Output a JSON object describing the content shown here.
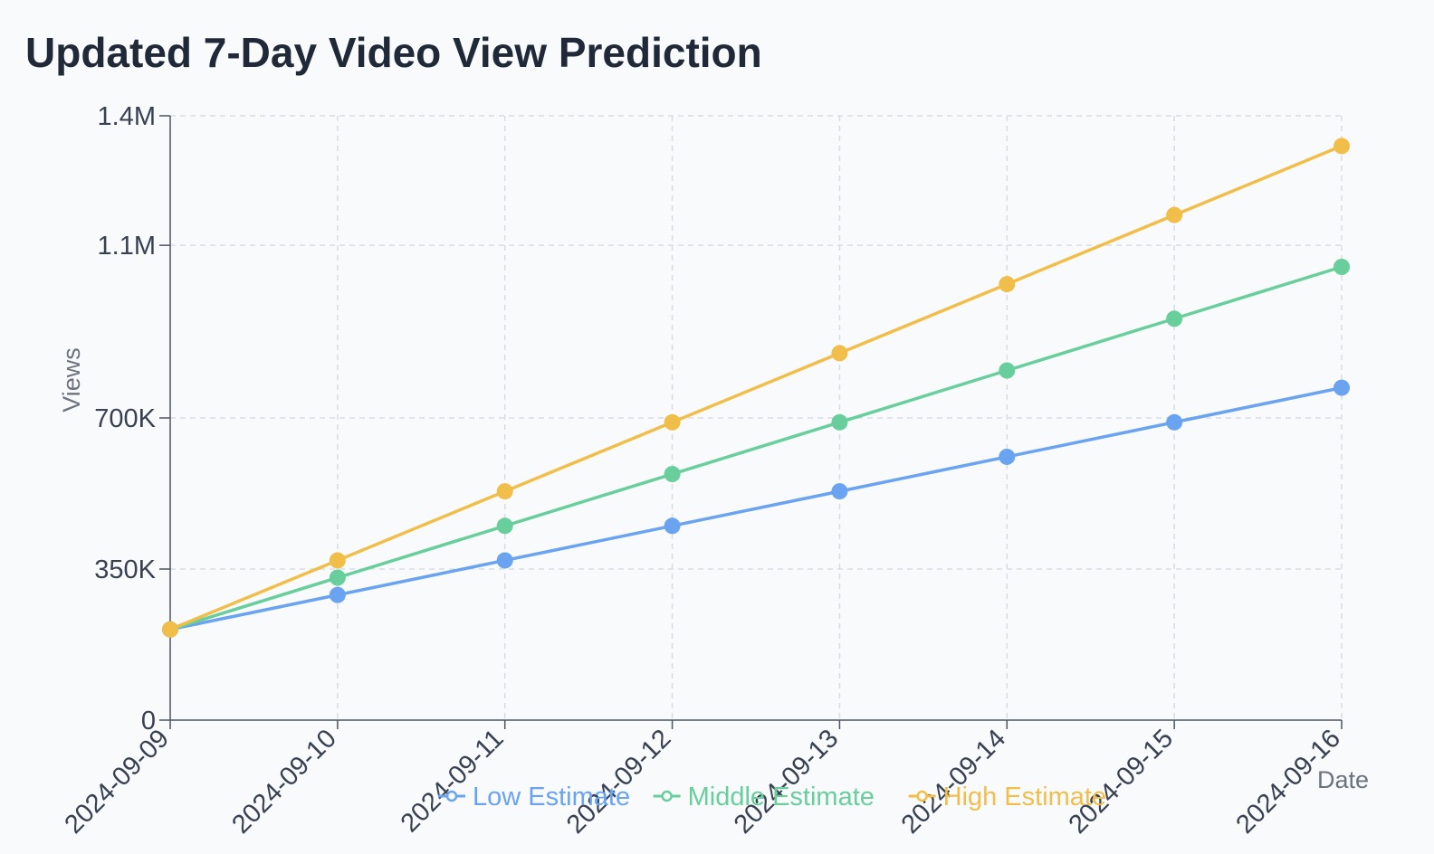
{
  "chart_data": {
    "type": "line",
    "title": "Updated 7-Day Video View Prediction",
    "xlabel": "Date",
    "ylabel": "Views",
    "categories": [
      "2024-09-09",
      "2024-09-10",
      "2024-09-11",
      "2024-09-12",
      "2024-09-13",
      "2024-09-14",
      "2024-09-15",
      "2024-09-16"
    ],
    "y_ticks": [
      0,
      350000,
      700000,
      1100000,
      1400000
    ],
    "y_tick_labels": [
      "0",
      "350K",
      "700K",
      "1.1M",
      "1.4M"
    ],
    "ylim": [
      0,
      1400000
    ],
    "grid": true,
    "legend_position": "bottom",
    "series": [
      {
        "name": "Low Estimate",
        "color": "#6aa3f0",
        "values": [
          210000,
          290000,
          370000,
          450000,
          530000,
          610000,
          690000,
          770000
        ]
      },
      {
        "name": "Middle Estimate",
        "color": "#68cf9c",
        "values": [
          210000,
          330000,
          450000,
          570000,
          690000,
          810000,
          930000,
          1050000
        ]
      },
      {
        "name": "High Estimate",
        "color": "#f2be4a",
        "values": [
          210000,
          370000,
          530000,
          690000,
          850000,
          1010000,
          1170000,
          1330000
        ]
      }
    ]
  }
}
